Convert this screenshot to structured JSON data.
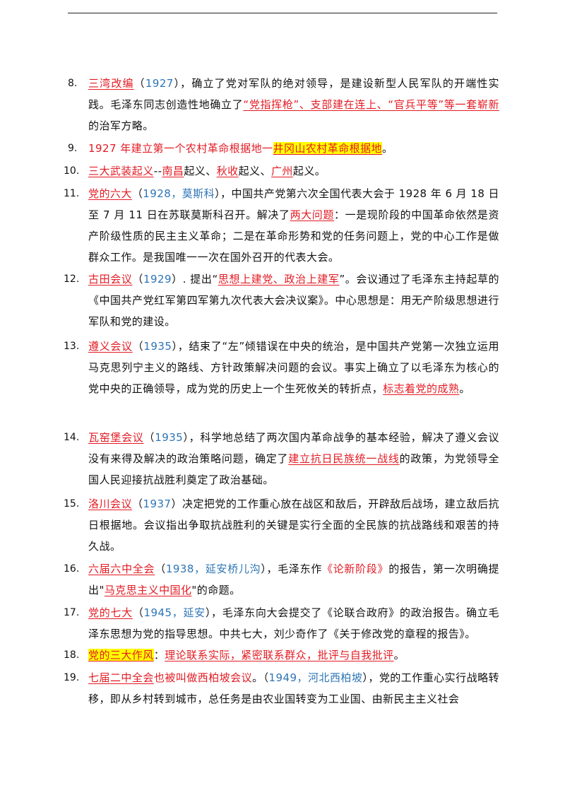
{
  "items": [
    {
      "number": "8.",
      "segments": [
        {
          "t": "三湾改编",
          "s": "ru"
        },
        {
          "t": "（",
          "s": ""
        },
        {
          "t": "1927",
          "s": "b"
        },
        {
          "t": "），确立了党对军队的绝对领导，是建设新型人民军队的开端性实践。毛泽东同志创造性地确立了",
          "s": ""
        },
        {
          "t": "“党指挥枪”、支部建在连上、“官兵平等”",
          "s": "ru"
        },
        {
          "t": "等一套崭新",
          "s": "ru"
        },
        {
          "t": "的治军方略。",
          "s": ""
        }
      ]
    },
    {
      "number": "9.",
      "segments": [
        {
          "t": "1927 年建立第一个农村革命根据地一",
          "s": "r"
        },
        {
          "t": "井冈山农村革命根据地",
          "s": "ruh"
        },
        {
          "t": "。",
          "s": ""
        }
      ]
    },
    {
      "number": "10.",
      "segments": [
        {
          "t": "三大武装起义",
          "s": "ru"
        },
        {
          "t": "--",
          "s": ""
        },
        {
          "t": "南昌",
          "s": "ru"
        },
        {
          "t": "起义、",
          "s": ""
        },
        {
          "t": "秋收",
          "s": "ru"
        },
        {
          "t": "起义、",
          "s": ""
        },
        {
          "t": "广州",
          "s": "ru"
        },
        {
          "t": "起义。",
          "s": ""
        }
      ]
    },
    {
      "number": "11.",
      "segments": [
        {
          "t": "党的六大",
          "s": "ru"
        },
        {
          "t": "（",
          "s": ""
        },
        {
          "t": "1928，莫斯科",
          "s": "b"
        },
        {
          "t": "），中国共产党第六次全国代表大会于 1928 年 6 月 18 日至 7 月 11 日在苏联莫斯科召开。解决了",
          "s": ""
        },
        {
          "t": "两大问题",
          "s": "ru"
        },
        {
          "t": "：一是现阶段的中国革命依然是资产阶级性质的民主主义革命；二是在革命形势和党的任务问题上，党的中心工作是做群众工作。是我国唯一一次在国外召开的代表大会。",
          "s": ""
        }
      ]
    },
    {
      "number": "12.",
      "segments": [
        {
          "t": "古田会议",
          "s": "ru"
        },
        {
          "t": "（",
          "s": ""
        },
        {
          "t": "1929",
          "s": "b"
        },
        {
          "t": "）. 提出“",
          "s": ""
        },
        {
          "t": "思想上建党、政治上建军",
          "s": "ru"
        },
        {
          "t": "”。会议通过了毛泽东主持起草的《中国共产党红军第四军第九次代表大会决议案》。中心思想是：用无产阶级思想进行军队和党的建设。",
          "s": ""
        }
      ]
    },
    {
      "number": "13.",
      "segments": [
        {
          "t": "遵义会议",
          "s": "ru"
        },
        {
          "t": "（",
          "s": ""
        },
        {
          "t": "1935",
          "s": "b"
        },
        {
          "t": "），结束了“左”倾错误在中央的统治，是中国共产党第一次独立运用马克思列宁主义的路线、方针政策解决问题的会议。事实上确立了以毛泽东为核心的党中央的正确领导，成为党的历史上一个生死攸关的转折点，",
          "s": ""
        },
        {
          "t": "标志着党的成熟",
          "s": "ru"
        },
        {
          "t": "。",
          "s": ""
        }
      ]
    },
    {
      "number": "14.",
      "segments": [
        {
          "t": "瓦窑堡会议",
          "s": "ru"
        },
        {
          "t": "（",
          "s": ""
        },
        {
          "t": "1935",
          "s": "b"
        },
        {
          "t": "），科学地总结了两次国内革命战争的基本经验，解决了遵义会议没有来得及解决的政治策略问题，确定了",
          "s": ""
        },
        {
          "t": "建立抗日民族统一战线",
          "s": "ru"
        },
        {
          "t": "的政策，为党领导全国人民迎接抗战胜利奠定了政治基础。",
          "s": ""
        }
      ]
    },
    {
      "number": "15.",
      "segments": [
        {
          "t": "洛川会议",
          "s": "ru"
        },
        {
          "t": "（",
          "s": ""
        },
        {
          "t": "1937",
          "s": "b"
        },
        {
          "t": "）决定把党的工作重心放在战区和敌后，开辟敌后战场，建立敌后抗日根据地。会议指出争取抗战胜利的关键是实行全面的全民族的抗战路线和艰苦的持久战。",
          "s": ""
        }
      ]
    },
    {
      "number": "16.",
      "segments": [
        {
          "t": "六届六中全会",
          "s": "ru"
        },
        {
          "t": "（",
          "s": ""
        },
        {
          "t": "1938，延安桥儿沟",
          "s": "b"
        },
        {
          "t": "），毛泽东作",
          "s": ""
        },
        {
          "t": "《论新阶段》",
          "s": "r"
        },
        {
          "t": "的报告，第一次明确提出\"",
          "s": ""
        },
        {
          "t": "马克思主义中国化",
          "s": "ru"
        },
        {
          "t": "\"的命题。",
          "s": ""
        }
      ]
    },
    {
      "number": "17.",
      "segments": [
        {
          "t": "党的七大",
          "s": "ru"
        },
        {
          "t": "（",
          "s": ""
        },
        {
          "t": "1945，延安",
          "s": "b"
        },
        {
          "t": "），毛泽东向大会提交了《论联合政府》的政治报告。确立毛泽东思想为党的指导思想。中共七大，刘少奇作了《关于修改党的章程的报告》。",
          "s": ""
        }
      ]
    },
    {
      "number": "18.",
      "segments": [
        {
          "t": "党的三大作风",
          "s": "ruh"
        },
        {
          "t": "：",
          "s": ""
        },
        {
          "t": "理论联系实际，紧密联系群众，批评与自我批评",
          "s": "ru"
        },
        {
          "t": "。",
          "s": ""
        }
      ]
    },
    {
      "number": "19.",
      "segments": [
        {
          "t": "七届二中全会",
          "s": "ru"
        },
        {
          "t": "也被叫做西柏坡会议",
          "s": "r"
        },
        {
          "t": "。（",
          "s": ""
        },
        {
          "t": "1949，河北西柏坡",
          "s": "b"
        },
        {
          "t": "），党的工作重心实行战略转移，即从乡村转到城市，总任务是由农业国转变为工业国、由新民主主义社会",
          "s": ""
        }
      ]
    }
  ]
}
